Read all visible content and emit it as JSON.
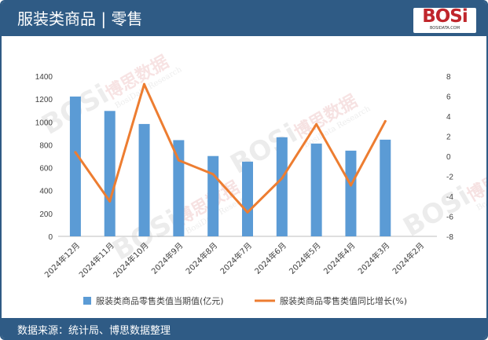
{
  "header": {
    "title": "服装类商品 | 零售"
  },
  "logo": {
    "text": "BOSi",
    "subtext": "BOSIDATA.COM"
  },
  "watermark": {
    "brand": "BOSi",
    "cn": "博思数据",
    "en": "BosiData Research"
  },
  "footer": {
    "source": "数据来源：统计局、博思数据整理"
  },
  "colors": {
    "header_bg": "#2f5b85",
    "bar": "#5b9bd5",
    "line": "#ed7d31",
    "logo_red": "#c0262c"
  },
  "chart_data": {
    "type": "bar+line",
    "categories": [
      "2024年12月",
      "2024年11月",
      "2024年10月",
      "2024年9月",
      "2024年8月",
      "2024年7月",
      "2024年6月",
      "2024年5月",
      "2024年4月",
      "2024年3月",
      "2024年2月"
    ],
    "series": [
      {
        "name": "服装类商品零售类值当期值(亿元)",
        "type": "bar",
        "axis": "left",
        "values": [
          1222,
          1096,
          982,
          841,
          702,
          653,
          866,
          811,
          749,
          845,
          null
        ]
      },
      {
        "name": "服装类商品零售类值同比增长(%)",
        "type": "line",
        "axis": "right",
        "values": [
          0.4,
          -4.5,
          7.2,
          -0.4,
          -1.8,
          -5.6,
          -2.2,
          3.2,
          -2.9,
          3.5,
          null
        ]
      }
    ],
    "y_left": {
      "min": 0,
      "max": 1400,
      "ticks": [
        "0",
        "200",
        "400",
        "600",
        "800",
        "1000",
        "1200",
        "1400"
      ]
    },
    "y_right": {
      "min": -8,
      "max": 8,
      "ticks": [
        "-8",
        "-6",
        "-4",
        "-2",
        "0",
        "2",
        "4",
        "6",
        "8"
      ]
    },
    "legend_position": "bottom",
    "grid": false
  }
}
